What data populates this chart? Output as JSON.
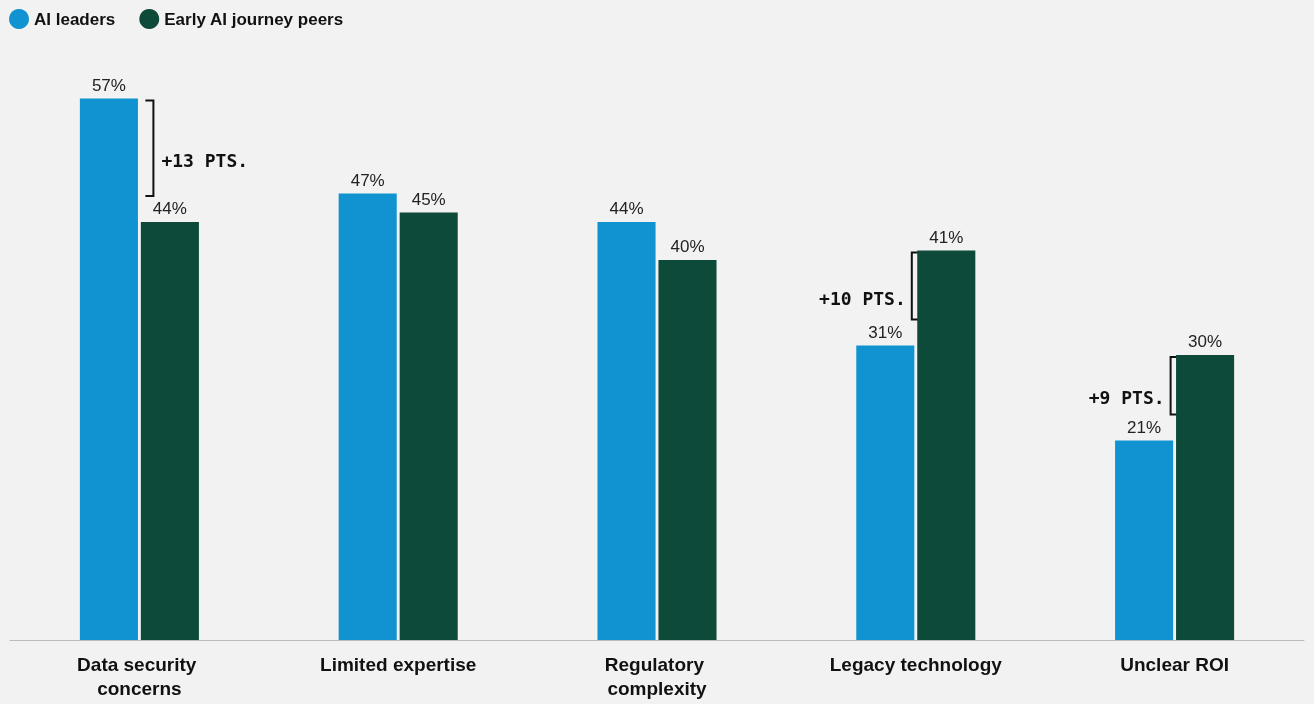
{
  "chart_data": {
    "type": "bar",
    "categories": [
      "Data security concerns",
      "Limited expertise",
      "Regulatory complexity",
      "Legacy technology",
      "Unclear ROI"
    ],
    "series": [
      {
        "name": "AI leaders",
        "color": "#1192d1",
        "values": [
          57,
          47,
          44,
          31,
          21
        ],
        "value_labels": [
          "57%",
          "47%",
          "44%",
          "31%",
          "21%"
        ]
      },
      {
        "name": "Early AI journey peers",
        "color": "#0d4a3a",
        "values": [
          44,
          45,
          40,
          41,
          30
        ],
        "value_labels": [
          "44%",
          "45%",
          "40%",
          "41%",
          "30%"
        ]
      }
    ],
    "legend": "top left",
    "annotations": [
      {
        "text": "+13 PTS.",
        "x": "Data security concerns",
        "y": 50.5
      },
      {
        "text": "+10 PTS.",
        "x": "Legacy technology",
        "y": 36
      },
      {
        "text": "+9 PTS.",
        "x": "Unclear ROI",
        "y": 25.5
      }
    ]
  }
}
